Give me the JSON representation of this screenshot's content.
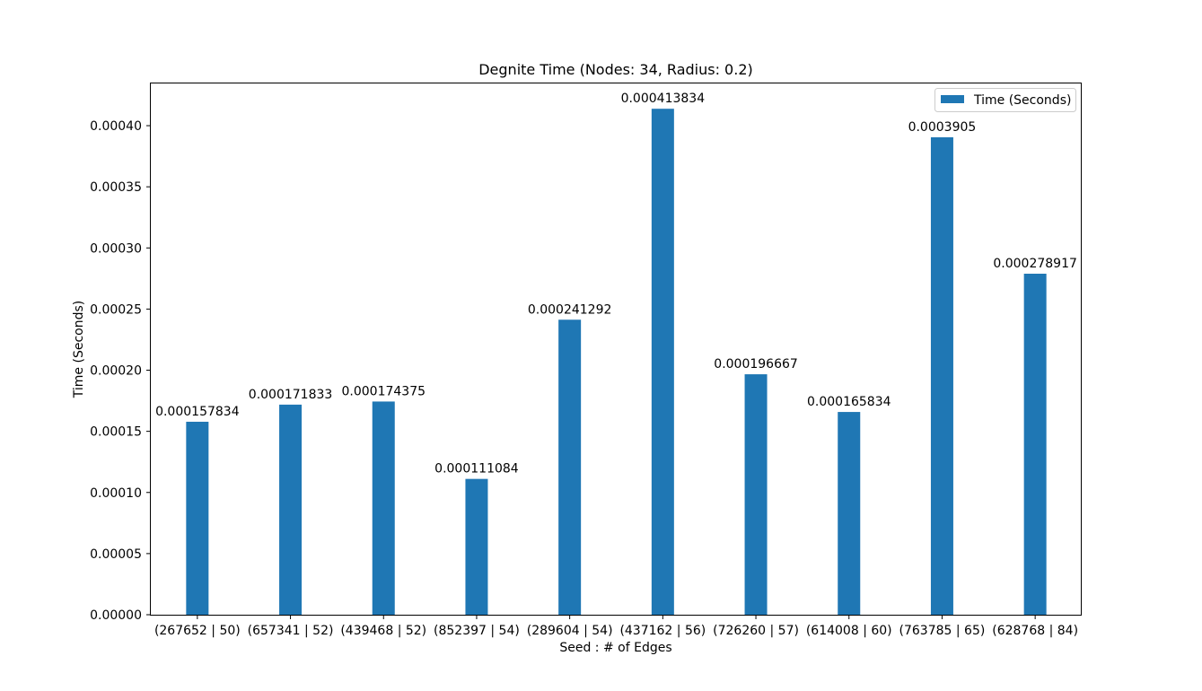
{
  "chart_data": {
    "type": "bar",
    "title": "Degnite Time (Nodes: 34, Radius: 0.2)",
    "xlabel": "Seed : # of Edges",
    "ylabel": "Time (Seconds)",
    "categories": [
      "(267652 | 50)",
      "(657341 | 52)",
      "(439468 | 52)",
      "(852397 | 54)",
      "(289604 | 54)",
      "(437162 | 56)",
      "(726260 | 57)",
      "(614008 | 60)",
      "(763785 | 65)",
      "(628768 | 84)"
    ],
    "series": [
      {
        "name": "Time (Seconds)",
        "values": [
          0.000157834,
          0.000171833,
          0.000174375,
          0.000111084,
          0.000241292,
          0.000413834,
          0.000196667,
          0.000165834,
          0.0003905,
          0.000278917
        ],
        "labels": [
          "0.000157834",
          "0.000171833",
          "0.000174375",
          "0.000111084",
          "0.000241292",
          "0.000413834",
          "0.000196667",
          "0.000165834",
          "0.0003905",
          "0.000278917"
        ],
        "color": "#1f77b4"
      }
    ],
    "yticks": [
      "0.00000",
      "0.00005",
      "0.00010",
      "0.00015",
      "0.00020",
      "0.00025",
      "0.00030",
      "0.00035",
      "0.00040"
    ],
    "ytick_values": [
      0,
      5e-05,
      0.0001,
      0.00015,
      0.0002,
      0.00025,
      0.0003,
      0.00035,
      0.0004
    ],
    "ylim": [
      0,
      0.000434526
    ],
    "grid": false,
    "legend_position": "top-right"
  }
}
